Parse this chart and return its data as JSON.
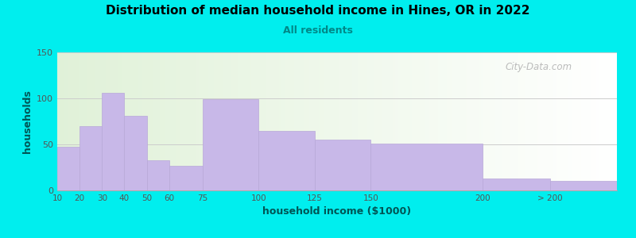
{
  "title": "Distribution of median household income in Hines, OR in 2022",
  "subtitle": "All residents",
  "xlabel": "household income ($1000)",
  "ylabel": "households",
  "background_outer": "#00EEEE",
  "bar_color": "#c8b8e8",
  "bar_edge_color": "#b8a8d8",
  "title_color": "#000000",
  "subtitle_color": "#008888",
  "axis_label_color": "#005555",
  "tick_label_color": "#555555",
  "watermark": "City-Data.com",
  "ylim": [
    0,
    150
  ],
  "yticks": [
    0,
    50,
    100,
    150
  ],
  "left_edges": [
    10,
    20,
    30,
    40,
    50,
    60,
    75,
    100,
    125,
    150,
    200,
    230
  ],
  "right_edges": [
    20,
    30,
    40,
    50,
    60,
    75,
    100,
    125,
    150,
    200,
    230,
    260
  ],
  "tick_positions": [
    10,
    20,
    30,
    40,
    50,
    60,
    75,
    100,
    125,
    150,
    200,
    230
  ],
  "tick_labels": [
    "10",
    "20",
    "30",
    "40",
    "50",
    "60",
    "75",
    "100",
    "125",
    "150",
    "200",
    "> 200"
  ],
  "values": [
    47,
    70,
    106,
    81,
    33,
    27,
    99,
    65,
    55,
    51,
    13,
    10
  ],
  "xlim": [
    10,
    260
  ],
  "figsize": [
    8.0,
    3.0
  ],
  "dpi": 100
}
